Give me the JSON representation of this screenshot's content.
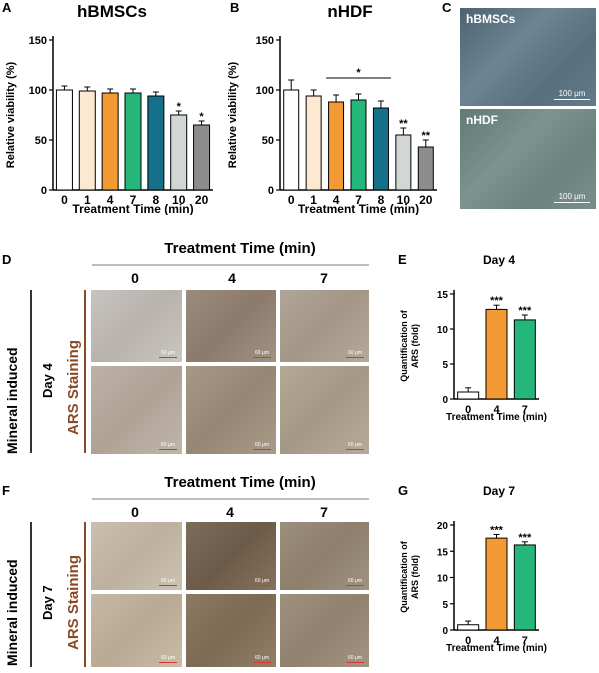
{
  "panels": {
    "A": "A",
    "B": "B",
    "C": "C",
    "D": "D",
    "E": "E",
    "F": "F",
    "G": "G"
  },
  "colors": {
    "c0": "#ffffff",
    "c1": "#fde8d2",
    "c4": "#f39a34",
    "c7": "#25b779",
    "c8": "#17708a",
    "c10": "#d3d6d6",
    "c20": "#8d8d8d"
  },
  "chart_data": [
    {
      "id": "A",
      "type": "bar",
      "title": "hBMSCs",
      "xlabel": "Treatment Time (min)",
      "ylabel": "Relative viability (%)",
      "categories": [
        "0",
        "1",
        "4",
        "7",
        "8",
        "10",
        "20"
      ],
      "values": [
        100,
        99,
        97,
        97,
        94,
        75,
        65
      ],
      "errors": [
        4,
        4,
        4,
        4,
        4,
        4,
        4
      ],
      "ylim": [
        0,
        150
      ],
      "yticks": [
        "0",
        "50",
        "100",
        "150"
      ],
      "colors": [
        "#ffffff",
        "#fde8d2",
        "#f39a34",
        "#25b779",
        "#17708a",
        "#d3d6d6",
        "#8d8d8d"
      ],
      "annotations": [
        "",
        "",
        "",
        "",
        "",
        "*",
        "*"
      ],
      "bracket": null
    },
    {
      "id": "B",
      "type": "bar",
      "title": "nHDF",
      "xlabel": "Treatment Time (min)",
      "ylabel": "Relative viability (%)",
      "categories": [
        "0",
        "1",
        "4",
        "7",
        "8",
        "10",
        "20"
      ],
      "values": [
        100,
        94,
        88,
        90,
        82,
        55,
        43
      ],
      "errors": [
        10,
        6,
        7,
        6,
        7,
        7,
        7
      ],
      "ylim": [
        0,
        150
      ],
      "yticks": [
        "0",
        "50",
        "100",
        "150"
      ],
      "colors": [
        "#ffffff",
        "#fde8d2",
        "#f39a34",
        "#25b779",
        "#17708a",
        "#d3d6d6",
        "#8d8d8d"
      ],
      "annotations": [
        "",
        "",
        "",
        "",
        "",
        "**",
        "**"
      ],
      "bracket": {
        "from": 2,
        "to": 4,
        "label": "*",
        "y": 112
      }
    },
    {
      "id": "E",
      "type": "bar",
      "title": "Day 4",
      "xlabel": "Treatment Time (min)",
      "ylabel": "Quantification of ARS (fold)",
      "ylabel_lines": [
        "Quantification of",
        "ARS (fold)"
      ],
      "categories": [
        "0",
        "4",
        "7"
      ],
      "values": [
        1,
        12.8,
        11.3
      ],
      "errors": [
        0.6,
        0.6,
        0.7
      ],
      "ylim": [
        0,
        15
      ],
      "yticks": [
        "0",
        "5",
        "10",
        "15"
      ],
      "colors": [
        "#ffffff",
        "#f39a34",
        "#25b779"
      ],
      "annotations": [
        "",
        "***",
        "***"
      ],
      "bracket": null
    },
    {
      "id": "G",
      "type": "bar",
      "title": "Day 7",
      "xlabel": "Treatment Time (min)",
      "ylabel": "Quantification of ARS (fold)",
      "ylabel_lines": [
        "Quantification of",
        "ARS (fold)"
      ],
      "categories": [
        "0",
        "4",
        "7"
      ],
      "values": [
        1,
        17.5,
        16.2
      ],
      "errors": [
        0.7,
        0.7,
        0.6
      ],
      "ylim": [
        0,
        20
      ],
      "yticks": [
        "0",
        "5",
        "10",
        "15",
        "20"
      ],
      "colors": [
        "#ffffff",
        "#f39a34",
        "#25b779"
      ],
      "annotations": [
        "",
        "***",
        "***"
      ],
      "bracket": null
    }
  ],
  "micrographs": {
    "top": {
      "label": "hBMSCs",
      "scale": "100 μm"
    },
    "bottom": {
      "label": "nHDF",
      "scale": "100 μm"
    }
  },
  "gridD": {
    "title": "Treatment Time (min)",
    "cols": [
      "0",
      "4",
      "7"
    ],
    "row_label_outer": "Mineral induced",
    "row_label_day": "Day 4",
    "row_label_stain": "ARS Staining",
    "scale": "60 μm"
  },
  "gridF": {
    "title": "Treatment Time (min)",
    "cols": [
      "0",
      "4",
      "7"
    ],
    "row_label_outer": "Mineral induced",
    "row_label_day": "Day 7",
    "row_label_stain": "ARS Staining",
    "scale": "60 μm"
  }
}
